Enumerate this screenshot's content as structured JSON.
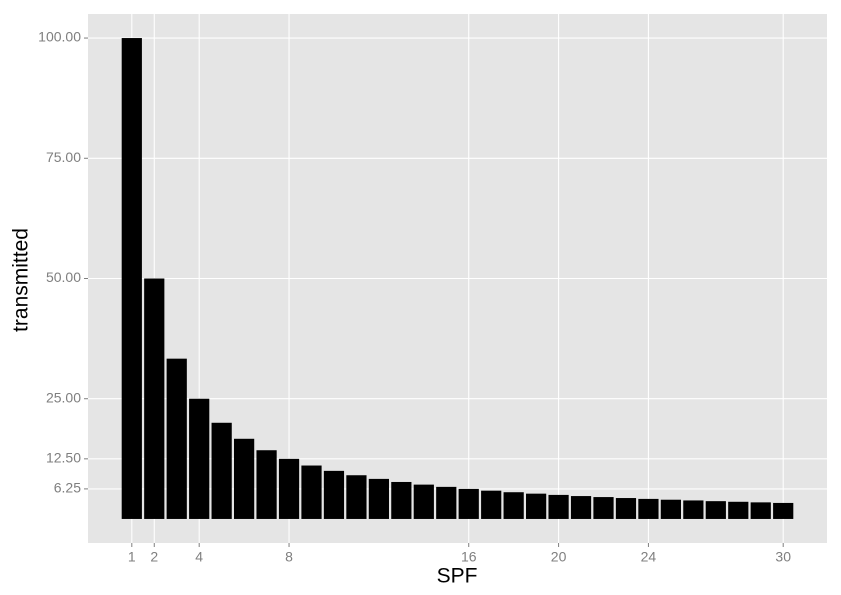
{
  "chart_data": {
    "type": "bar",
    "x_label": "SPF",
    "y_label": "transmitted",
    "x": [
      1,
      2,
      3,
      4,
      5,
      6,
      7,
      8,
      9,
      10,
      11,
      12,
      13,
      14,
      15,
      16,
      17,
      18,
      19,
      20,
      21,
      22,
      23,
      24,
      25,
      26,
      27,
      28,
      29,
      30
    ],
    "values": [
      100,
      50,
      33.33,
      25,
      20,
      16.67,
      14.29,
      12.5,
      11.11,
      10,
      9.09,
      8.33,
      7.69,
      7.14,
      6.67,
      6.25,
      5.88,
      5.56,
      5.26,
      5,
      4.76,
      4.55,
      4.35,
      4.17,
      4,
      3.85,
      3.7,
      3.57,
      3.45,
      3.33
    ],
    "color": "#000000",
    "xlim": [
      -0.95,
      31.95
    ],
    "xticks": [
      1,
      2,
      4,
      8,
      16,
      20,
      24,
      30
    ],
    "ylim": [
      -5,
      105
    ],
    "yticks": [
      6.25,
      {
        "value": 12.5,
        "label": "12.50"
      },
      {
        "value": 25,
        "label": "25.00"
      },
      {
        "value": 50,
        "label": "50.00"
      },
      {
        "value": 75,
        "label": "75.00"
      },
      {
        "value": 100,
        "label": "100.00"
      }
    ],
    "grid": true
  }
}
